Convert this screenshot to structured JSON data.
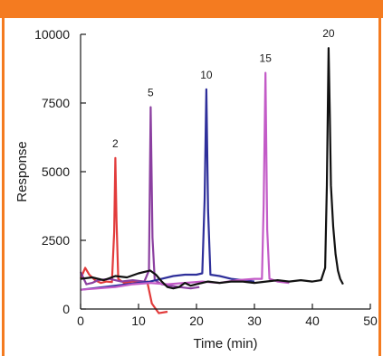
{
  "colors": {
    "frame": "#f47b20",
    "axis": "#1a1a1a"
  },
  "chart_data": {
    "type": "line",
    "title": "",
    "xlabel": "Time (min)",
    "ylabel": "Response",
    "xlim": [
      0,
      50
    ],
    "ylim": [
      0,
      10000
    ],
    "x_ticks": [
      0,
      10,
      20,
      30,
      40,
      50
    ],
    "y_ticks": [
      0,
      2500,
      5000,
      7500,
      10000
    ],
    "grid": false,
    "series": [
      {
        "color": "#e23b3b",
        "points": [
          [
            0,
            1100
          ],
          [
            0.8,
            1500
          ],
          [
            1.5,
            1250
          ],
          [
            2.5,
            1050
          ],
          [
            3.5,
            950
          ],
          [
            4.5,
            1000
          ],
          [
            5.4,
            980
          ],
          [
            5.8,
            2800
          ],
          [
            6.0,
            5500
          ],
          [
            6.2,
            3200
          ],
          [
            6.5,
            1100
          ],
          [
            7.5,
            950
          ],
          [
            9,
            1000
          ],
          [
            10.5,
            950
          ],
          [
            11.5,
            1000
          ],
          [
            12.3,
            200
          ],
          [
            13.5,
            -150
          ],
          [
            15.0,
            -100
          ]
        ],
        "peak": {
          "x": 6.0,
          "y": 5500,
          "label": "2"
        }
      },
      {
        "color": "#8b3fa0",
        "points": [
          [
            0,
            1350
          ],
          [
            1,
            900
          ],
          [
            2,
            950
          ],
          [
            3,
            1050
          ],
          [
            5,
            1100
          ],
          [
            7,
            1000
          ],
          [
            9,
            1050
          ],
          [
            11,
            1000
          ],
          [
            11.8,
            1400
          ],
          [
            12.1,
            7350
          ],
          [
            12.4,
            2600
          ],
          [
            12.8,
            1050
          ],
          [
            14,
            900
          ],
          [
            15.5,
            850
          ],
          [
            17,
            800
          ],
          [
            19,
            750
          ],
          [
            20.5,
            800
          ]
        ],
        "peak": {
          "x": 12.1,
          "y": 7350,
          "label": "5"
        }
      },
      {
        "color": "#2e2f9a",
        "points": [
          [
            0,
            700
          ],
          [
            2,
            750
          ],
          [
            4,
            800
          ],
          [
            6,
            850
          ],
          [
            8,
            900
          ],
          [
            10,
            950
          ],
          [
            12,
            1000
          ],
          [
            14,
            1100
          ],
          [
            16,
            1200
          ],
          [
            18,
            1250
          ],
          [
            20,
            1250
          ],
          [
            21.0,
            1300
          ],
          [
            21.4,
            4000
          ],
          [
            21.7,
            8000
          ],
          [
            22.0,
            3600
          ],
          [
            22.4,
            1250
          ],
          [
            24,
            1200
          ],
          [
            26,
            1100
          ],
          [
            28,
            1050
          ],
          [
            30,
            1000
          ]
        ],
        "peak": {
          "x": 21.7,
          "y": 8000,
          "label": "10"
        }
      },
      {
        "color": "#c35bc7",
        "points": [
          [
            0,
            700
          ],
          [
            3,
            750
          ],
          [
            6,
            800
          ],
          [
            9,
            900
          ],
          [
            12,
            950
          ],
          [
            15,
            900
          ],
          [
            18,
            950
          ],
          [
            21,
            1000
          ],
          [
            24,
            950
          ],
          [
            27,
            1050
          ],
          [
            30,
            1100
          ],
          [
            31.3,
            1100
          ],
          [
            31.6,
            3800
          ],
          [
            31.9,
            8600
          ],
          [
            32.2,
            2900
          ],
          [
            32.6,
            1100
          ],
          [
            34,
            1000
          ],
          [
            36,
            950
          ]
        ],
        "peak": {
          "x": 31.9,
          "y": 8600,
          "label": "15"
        }
      },
      {
        "color": "#111111",
        "points": [
          [
            0,
            1100
          ],
          [
            2,
            1150
          ],
          [
            4,
            1050
          ],
          [
            6,
            1200
          ],
          [
            8,
            1150
          ],
          [
            10,
            1300
          ],
          [
            12,
            1400
          ],
          [
            13,
            1250
          ],
          [
            14,
            1000
          ],
          [
            15,
            800
          ],
          [
            16,
            750
          ],
          [
            17,
            800
          ],
          [
            18,
            950
          ],
          [
            19,
            850
          ],
          [
            20,
            900
          ],
          [
            22,
            1000
          ],
          [
            24,
            950
          ],
          [
            26,
            1000
          ],
          [
            28,
            1000
          ],
          [
            30,
            950
          ],
          [
            32,
            1000
          ],
          [
            34,
            1050
          ],
          [
            36,
            1000
          ],
          [
            38,
            1050
          ],
          [
            40,
            1000
          ],
          [
            41.5,
            1050
          ],
          [
            42.2,
            1500
          ],
          [
            42.5,
            4500
          ],
          [
            42.8,
            9500
          ],
          [
            43.0,
            7200
          ],
          [
            43.2,
            4500
          ],
          [
            43.6,
            3000
          ],
          [
            44.0,
            2000
          ],
          [
            44.4,
            1400
          ],
          [
            44.8,
            1100
          ],
          [
            45.3,
            900
          ]
        ],
        "peak": {
          "x": 42.8,
          "y": 9500,
          "label": "20"
        }
      }
    ]
  }
}
